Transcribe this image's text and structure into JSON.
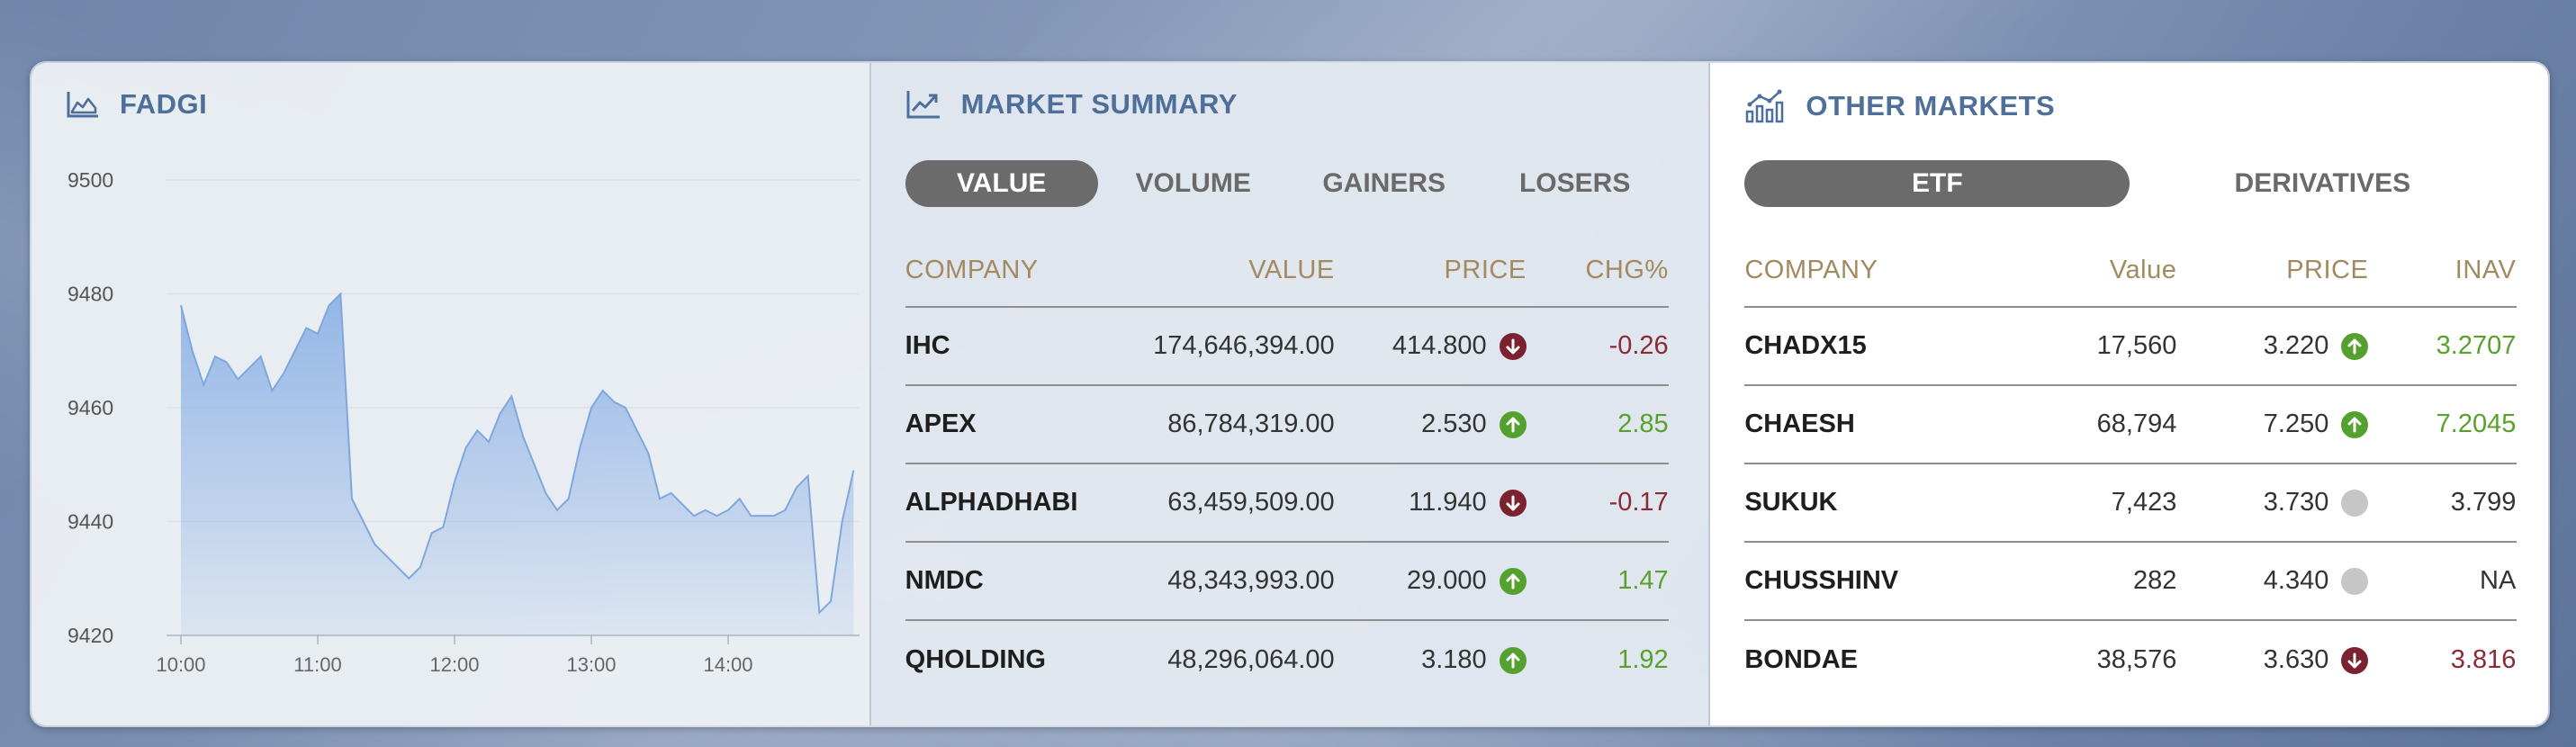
{
  "fadgi": {
    "title": "FADGI",
    "icon": "area-chart-icon",
    "y_ticks": [
      "9500",
      "9480",
      "9460",
      "9440",
      "9420"
    ],
    "x_ticks": [
      "10:00",
      "11:00",
      "12:00",
      "13:00",
      "14:00"
    ],
    "chart_data": {
      "type": "area",
      "ylim": [
        9420,
        9500
      ],
      "xlim": [
        "10:00",
        "15:00"
      ],
      "x": [
        "10:00",
        "10:05",
        "10:10",
        "10:15",
        "10:20",
        "10:25",
        "10:30",
        "10:35",
        "10:40",
        "10:45",
        "10:50",
        "10:55",
        "11:00",
        "11:05",
        "11:10",
        "11:15",
        "11:20",
        "11:25",
        "11:30",
        "11:35",
        "11:40",
        "11:45",
        "11:50",
        "11:55",
        "12:00",
        "12:05",
        "12:10",
        "12:15",
        "12:20",
        "12:25",
        "12:30",
        "12:35",
        "12:40",
        "12:45",
        "12:50",
        "12:55",
        "13:00",
        "13:05",
        "13:10",
        "13:15",
        "13:20",
        "13:25",
        "13:30",
        "13:35",
        "13:40",
        "13:45",
        "13:50",
        "13:55",
        "14:00",
        "14:05",
        "14:10",
        "14:15",
        "14:20",
        "14:25",
        "14:30",
        "14:35",
        "14:40",
        "14:45",
        "14:50",
        "14:55"
      ],
      "y": [
        9478,
        9470,
        9464,
        9469,
        9468,
        9465,
        9467,
        9469,
        9463,
        9466,
        9470,
        9474,
        9473,
        9478,
        9480,
        9444,
        9440,
        9436,
        9434,
        9432,
        9430,
        9432,
        9438,
        9439,
        9447,
        9453,
        9456,
        9454,
        9459,
        9462,
        9455,
        9450,
        9445,
        9442,
        9444,
        9453,
        9460,
        9463,
        9461,
        9460,
        9456,
        9452,
        9444,
        9445,
        9443,
        9441,
        9442,
        9441,
        9442,
        9444,
        9441,
        9441,
        9441,
        9442,
        9446,
        9448,
        9424,
        9426,
        9440,
        9449
      ]
    }
  },
  "market_summary": {
    "title": "MARKET SUMMARY",
    "icon": "trend-line-icon",
    "tabs": [
      "VALUE",
      "VOLUME",
      "GAINERS",
      "LOSERS"
    ],
    "active_tab": "VALUE",
    "headers": [
      "COMPANY",
      "VALUE",
      "PRICE",
      "CHG%"
    ],
    "rows": [
      {
        "company": "IHC",
        "value": "174,646,394.00",
        "price": "414.800",
        "dir": "down",
        "chg": "-0.26"
      },
      {
        "company": "APEX",
        "value": "86,784,319.00",
        "price": "2.530",
        "dir": "up",
        "chg": "2.85"
      },
      {
        "company": "ALPHADHABI",
        "value": "63,459,509.00",
        "price": "11.940",
        "dir": "down",
        "chg": "-0.17"
      },
      {
        "company": "NMDC",
        "value": "48,343,993.00",
        "price": "29.000",
        "dir": "up",
        "chg": "1.47"
      },
      {
        "company": "QHOLDING",
        "value": "48,296,064.00",
        "price": "3.180",
        "dir": "up",
        "chg": "1.92"
      }
    ]
  },
  "other_markets": {
    "title": "OTHER MARKETS",
    "icon": "bar-chart-icon",
    "tabs": [
      "ETF",
      "DERIVATIVES"
    ],
    "active_tab": "ETF",
    "headers": [
      "COMPANY",
      "Value",
      "PRICE",
      "INAV"
    ],
    "rows": [
      {
        "company": "CHADX15",
        "value": "17,560",
        "price": "3.220",
        "dir": "up",
        "inav": "3.2707"
      },
      {
        "company": "CHAESH",
        "value": "68,794",
        "price": "7.250",
        "dir": "up",
        "inav": "7.2045"
      },
      {
        "company": "SUKUK",
        "value": "7,423",
        "price": "3.730",
        "dir": "flat",
        "inav": "3.799"
      },
      {
        "company": "CHUSSHINV",
        "value": "282",
        "price": "4.340",
        "dir": "flat",
        "inav": "NA"
      },
      {
        "company": "BONDAE",
        "value": "38,576",
        "price": "3.630",
        "dir": "down",
        "inav": "3.816"
      }
    ]
  },
  "colors": {
    "accent_title": "#4e6f99",
    "header_gold": "#a38a5e",
    "up_green": "#5aa02c",
    "down_red": "#8a2a36",
    "area_fill": "#8fb3e6"
  }
}
